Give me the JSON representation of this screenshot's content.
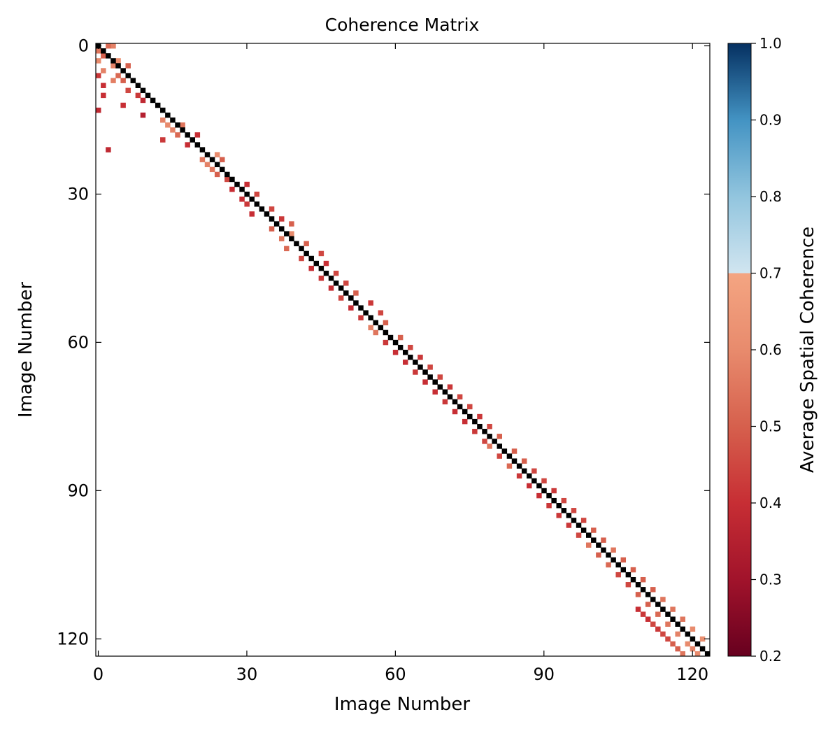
{
  "chart_data": {
    "type": "heatmap",
    "title": "Coherence Matrix",
    "xlabel": "Image Number",
    "ylabel": "Image Number",
    "n": 124,
    "x_ticks": [
      0,
      30,
      60,
      90,
      120
    ],
    "y_ticks": [
      0,
      30,
      60,
      90,
      120
    ],
    "diagonal_value": 1.0,
    "colorbar": {
      "label": "Average Spatial Coherence",
      "min": 0.2,
      "max": 1.0,
      "ticks": [
        "0.2",
        "0.3",
        "0.4",
        "0.5",
        "0.6",
        "0.7",
        "0.8",
        "0.9",
        "1.0"
      ],
      "colormap": "RdBu",
      "empty_band": [
        0.7,
        0.8
      ],
      "stops": [
        {
          "v": 0.2,
          "color": "#67001f"
        },
        {
          "v": 0.3,
          "color": "#a1132b"
        },
        {
          "v": 0.4,
          "color": "#c72e34"
        },
        {
          "v": 0.5,
          "color": "#d6604d"
        },
        {
          "v": 0.6,
          "color": "#e88b6d"
        },
        {
          "v": 0.7,
          "color": "#f4a582"
        },
        {
          "v": 0.7001,
          "color": "#d1e5f0"
        },
        {
          "v": 0.8,
          "color": "#92c5de"
        },
        {
          "v": 0.9,
          "color": "#4393c3"
        },
        {
          "v": 1.0,
          "color": "#053061"
        }
      ]
    },
    "cells": [
      [
        0,
        3,
        0.58
      ],
      [
        0,
        2,
        0.52
      ],
      [
        1,
        0,
        0.55
      ],
      [
        2,
        1,
        0.5
      ],
      [
        3,
        0,
        0.6
      ],
      [
        3,
        4,
        0.62
      ],
      [
        4,
        3,
        0.58
      ],
      [
        4,
        6,
        0.5
      ],
      [
        5,
        1,
        0.58
      ],
      [
        6,
        4,
        0.52
      ],
      [
        6,
        0,
        0.42
      ],
      [
        7,
        3,
        0.57
      ],
      [
        7,
        5,
        0.5
      ],
      [
        8,
        1,
        0.4
      ],
      [
        9,
        6,
        0.45
      ],
      [
        10,
        8,
        0.42
      ],
      [
        10,
        1,
        0.4
      ],
      [
        11,
        9,
        0.38
      ],
      [
        12,
        5,
        0.4
      ],
      [
        13,
        0,
        0.38
      ],
      [
        14,
        9,
        0.35
      ],
      [
        15,
        13,
        0.58
      ],
      [
        16,
        14,
        0.6
      ],
      [
        16,
        17,
        0.55
      ],
      [
        17,
        15,
        0.58
      ],
      [
        18,
        16,
        0.52
      ],
      [
        18,
        20,
        0.4
      ],
      [
        19,
        13,
        0.42
      ],
      [
        20,
        18,
        0.4
      ],
      [
        21,
        2,
        0.38
      ],
      [
        22,
        24,
        0.6
      ],
      [
        23,
        21,
        0.55
      ],
      [
        23,
        25,
        0.5
      ],
      [
        24,
        22,
        0.58
      ],
      [
        25,
        23,
        0.55
      ],
      [
        26,
        24,
        0.5
      ],
      [
        27,
        26,
        0.45
      ],
      [
        28,
        30,
        0.4
      ],
      [
        29,
        27,
        0.4
      ],
      [
        30,
        32,
        0.45
      ],
      [
        31,
        29,
        0.4
      ],
      [
        32,
        30,
        0.42
      ],
      [
        33,
        35,
        0.45
      ],
      [
        34,
        31,
        0.4
      ],
      [
        35,
        37,
        0.42
      ],
      [
        36,
        39,
        0.5
      ],
      [
        37,
        35,
        0.5
      ],
      [
        38,
        39,
        0.6
      ],
      [
        39,
        37,
        0.55
      ],
      [
        40,
        42,
        0.5
      ],
      [
        41,
        38,
        0.52
      ],
      [
        42,
        45,
        0.45
      ],
      [
        43,
        41,
        0.45
      ],
      [
        44,
        46,
        0.4
      ],
      [
        45,
        43,
        0.4
      ],
      [
        46,
        48,
        0.45
      ],
      [
        47,
        45,
        0.42
      ],
      [
        48,
        50,
        0.45
      ],
      [
        49,
        47,
        0.4
      ],
      [
        50,
        52,
        0.5
      ],
      [
        51,
        49,
        0.45
      ],
      [
        52,
        55,
        0.42
      ],
      [
        53,
        51,
        0.4
      ],
      [
        54,
        57,
        0.45
      ],
      [
        55,
        53,
        0.42
      ],
      [
        56,
        58,
        0.5
      ],
      [
        57,
        55,
        0.58
      ],
      [
        58,
        56,
        0.55
      ],
      [
        59,
        61,
        0.5
      ],
      [
        60,
        58,
        0.42
      ],
      [
        61,
        63,
        0.45
      ],
      [
        62,
        60,
        0.4
      ],
      [
        63,
        65,
        0.42
      ],
      [
        64,
        62,
        0.4
      ],
      [
        65,
        67,
        0.45
      ],
      [
        66,
        64,
        0.42
      ],
      [
        67,
        69,
        0.45
      ],
      [
        68,
        66,
        0.4
      ],
      [
        69,
        71,
        0.42
      ],
      [
        70,
        68,
        0.4
      ],
      [
        71,
        73,
        0.45
      ],
      [
        72,
        70,
        0.42
      ],
      [
        73,
        75,
        0.45
      ],
      [
        74,
        72,
        0.4
      ],
      [
        75,
        77,
        0.42
      ],
      [
        76,
        74,
        0.4
      ],
      [
        77,
        79,
        0.45
      ],
      [
        78,
        76,
        0.42
      ],
      [
        79,
        81,
        0.5
      ],
      [
        80,
        78,
        0.45
      ],
      [
        81,
        79,
        0.55
      ],
      [
        82,
        84,
        0.5
      ],
      [
        83,
        81,
        0.45
      ],
      [
        84,
        86,
        0.5
      ],
      [
        85,
        83,
        0.52
      ],
      [
        86,
        88,
        0.45
      ],
      [
        87,
        85,
        0.42
      ],
      [
        88,
        90,
        0.45
      ],
      [
        89,
        87,
        0.4
      ],
      [
        90,
        92,
        0.42
      ],
      [
        91,
        89,
        0.4
      ],
      [
        92,
        94,
        0.45
      ],
      [
        93,
        91,
        0.42
      ],
      [
        94,
        96,
        0.45
      ],
      [
        95,
        93,
        0.42
      ],
      [
        96,
        98,
        0.45
      ],
      [
        97,
        95,
        0.42
      ],
      [
        98,
        100,
        0.5
      ],
      [
        99,
        97,
        0.45
      ],
      [
        100,
        102,
        0.5
      ],
      [
        101,
        99,
        0.55
      ],
      [
        102,
        104,
        0.55
      ],
      [
        103,
        101,
        0.5
      ],
      [
        104,
        106,
        0.5
      ],
      [
        105,
        103,
        0.52
      ],
      [
        106,
        108,
        0.5
      ],
      [
        107,
        105,
        0.45
      ],
      [
        108,
        110,
        0.5
      ],
      [
        109,
        107,
        0.45
      ],
      [
        110,
        112,
        0.5
      ],
      [
        111,
        109,
        0.5
      ],
      [
        112,
        114,
        0.55
      ],
      [
        113,
        111,
        0.5
      ],
      [
        114,
        116,
        0.55
      ],
      [
        115,
        113,
        0.52
      ],
      [
        116,
        118,
        0.55
      ],
      [
        117,
        115,
        0.55
      ],
      [
        118,
        120,
        0.6
      ],
      [
        119,
        117,
        0.58
      ],
      [
        120,
        122,
        0.62
      ],
      [
        121,
        119,
        0.6
      ],
      [
        122,
        120,
        0.58
      ],
      [
        123,
        121,
        0.6
      ],
      [
        123,
        118,
        0.55
      ],
      [
        122,
        117,
        0.5
      ],
      [
        121,
        116,
        0.5
      ],
      [
        120,
        115,
        0.45
      ],
      [
        119,
        114,
        0.45
      ],
      [
        118,
        113,
        0.42
      ],
      [
        117,
        112,
        0.45
      ],
      [
        116,
        111,
        0.4
      ],
      [
        115,
        110,
        0.42
      ],
      [
        114,
        109,
        0.4
      ]
    ]
  }
}
